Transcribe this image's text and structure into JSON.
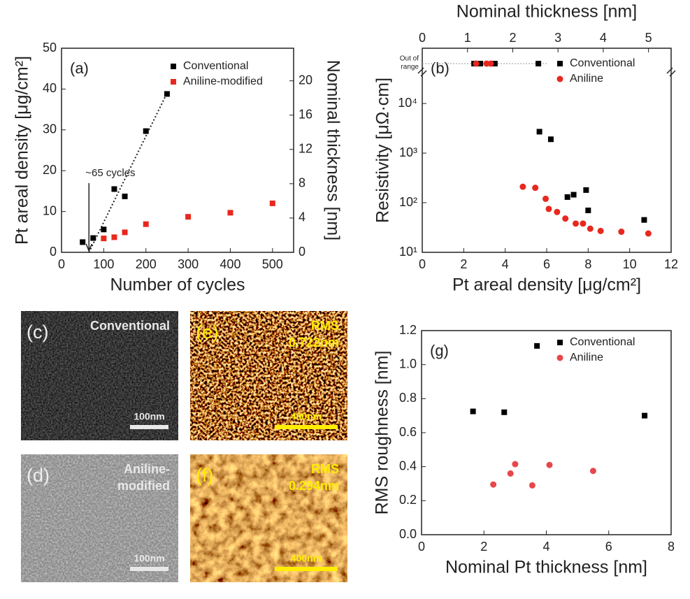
{
  "chart_data": [
    {
      "type": "scatter",
      "label": "(a)",
      "xlabel": "Number of cycles",
      "ylabel": "Pt areal density [μg/cm²]",
      "y2label": "Nominal thickness [nm]",
      "xlim": [
        0,
        550
      ],
      "xticks": [
        0,
        100,
        200,
        300,
        400,
        500
      ],
      "ylim": [
        0,
        50
      ],
      "yticks": [
        0,
        10,
        20,
        30,
        40,
        50
      ],
      "y2lim": [
        0,
        23.8
      ],
      "y2ticks": [
        0,
        4,
        8,
        12,
        16,
        20
      ],
      "legend": "upper right",
      "series": [
        {
          "name": "Conventional",
          "color": "#000000",
          "marker": "square",
          "x": [
            50,
            75,
            100,
            125,
            150,
            200,
            250
          ],
          "values": [
            2.5,
            3.5,
            5.6,
            15.5,
            13.7,
            29.7,
            38.8
          ]
        },
        {
          "name": "Aniline-modified",
          "color": "#e8281e",
          "marker": "square",
          "x": [
            100,
            125,
            150,
            200,
            300,
            400,
            500
          ],
          "values": [
            3.4,
            3.7,
            4.9,
            6.9,
            8.7,
            9.7,
            12
          ]
        }
      ],
      "trend_line": {
        "x": [
          65,
          250
        ],
        "values": [
          0,
          39
        ]
      },
      "annotation": {
        "text": "~65 cycles",
        "x": 65
      }
    },
    {
      "type": "scatter",
      "label": "(b)",
      "xlabel": "Pt areal density [μg/cm²]",
      "ylabel": "Resistivity [μΩ·cm]",
      "x2label": "Nominal thickness [nm]",
      "xlim": [
        0,
        12
      ],
      "xticks": [
        0,
        2,
        4,
        6,
        8,
        10,
        12
      ],
      "ylog": true,
      "ylim": [
        10,
        130000
      ],
      "yticks": [
        {
          "value": 10,
          "label": "10¹"
        },
        {
          "value": 100,
          "label": "10²"
        },
        {
          "value": 1000,
          "label": "10³"
        },
        {
          "value": 10000,
          "label": "10⁴"
        }
      ],
      "x2lim": [
        0,
        5.5
      ],
      "x2ticks": [
        0,
        1,
        2,
        3,
        4,
        5
      ],
      "legend": "upper right",
      "out_of_range_label": [
        "Out of",
        "range"
      ],
      "series": [
        {
          "name": "Conventional",
          "color": "#000000",
          "marker": "square",
          "x": [
            5.65,
            6.2,
            7.0,
            7.3,
            7.9,
            8.0,
            10.7
          ],
          "values": [
            2700,
            1900,
            130,
            145,
            180,
            70,
            45
          ],
          "out_of_range_x": [
            2.5,
            2.8,
            3.5,
            5.6
          ]
        },
        {
          "name": "Aniline",
          "color": "#e8281e",
          "marker": "circle",
          "x": [
            4.85,
            5.45,
            5.95,
            6.1,
            6.5,
            6.9,
            7.4,
            7.75,
            8.1,
            8.6,
            9.6,
            10.9
          ],
          "values": [
            210,
            200,
            120,
            75,
            65,
            48,
            38,
            38,
            30,
            27,
            26,
            24
          ],
          "out_of_range_x": [
            2.6,
            3.1,
            3.3
          ]
        }
      ]
    },
    {
      "type": "scatter",
      "label": "(g)",
      "xlabel": "Nominal Pt thickness [nm]",
      "ylabel": "RMS roughness [nm]",
      "xlim": [
        0,
        8
      ],
      "xticks": [
        0,
        2,
        4,
        6,
        8
      ],
      "ylim": [
        0,
        1.2
      ],
      "yticks": [
        {
          "value": 0,
          "label": "0.0"
        },
        0.2,
        0.4,
        0.6,
        0.8,
        {
          "value": 1,
          "label": "1.0"
        },
        1.2
      ],
      "legend": "upper right",
      "series": [
        {
          "name": "Conventional",
          "color": "#000000",
          "marker": "square",
          "x": [
            1.65,
            2.65,
            3.7,
            7.15
          ],
          "values": [
            0.725,
            0.72,
            1.11,
            0.7
          ]
        },
        {
          "name": "Aniline",
          "color": "#e8474a",
          "marker": "circle",
          "x": [
            2.3,
            2.85,
            3.0,
            3.55,
            4.1,
            5.5
          ],
          "values": [
            0.295,
            0.36,
            0.415,
            0.29,
            0.41,
            0.375
          ]
        }
      ]
    }
  ],
  "panels": [
    {
      "label": "(c)",
      "title": [
        "Conventional"
      ],
      "scale": "100nm"
    },
    {
      "label": "(e)",
      "title": [
        "RMS",
        "0.722nm"
      ],
      "scale": "400nm"
    },
    {
      "label": "(d)",
      "title": [
        "Aniline-",
        "modified"
      ],
      "scale": "100nm"
    },
    {
      "label": "(f)",
      "title": [
        "RMS",
        "0.294nm"
      ],
      "scale": "400nm"
    }
  ]
}
